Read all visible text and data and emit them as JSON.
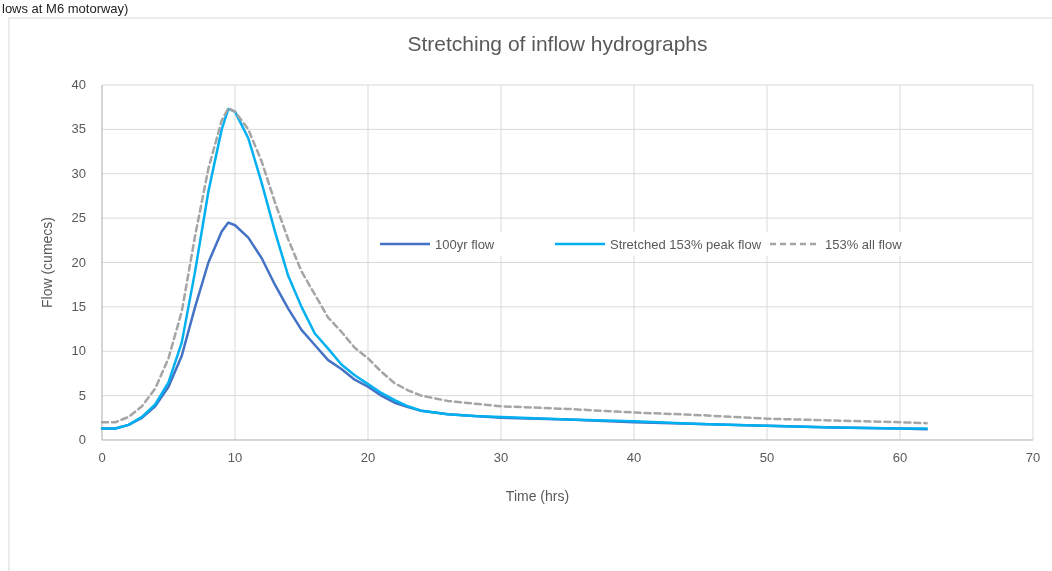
{
  "chart_data": {
    "type": "line",
    "title": "Stretching of inflow hydrographs",
    "xlabel": "Time (hrs)",
    "ylabel": "Flow (cumecs)",
    "annotations": [
      "lows at M6 motorway)"
    ],
    "x": [
      0,
      1,
      2,
      3,
      4,
      5,
      6,
      7,
      8,
      9,
      9.5,
      10,
      11,
      12,
      13,
      14,
      15,
      16,
      17,
      18,
      19,
      20,
      21,
      22,
      23,
      24,
      26,
      28,
      30,
      35,
      40,
      45,
      50,
      55,
      60,
      62
    ],
    "series": [
      {
        "name": "100yr flow",
        "color": "#4472c4",
        "line_style": "solid",
        "values": [
          1.3,
          1.3,
          1.7,
          2.5,
          3.8,
          6,
          9.5,
          15,
          20,
          23.5,
          24.5,
          24.2,
          22.8,
          20.5,
          17.5,
          14.8,
          12.4,
          10.7,
          9,
          8,
          6.8,
          6,
          5,
          4.2,
          3.7,
          3.3,
          2.9,
          2.7,
          2.5,
          2.3,
          2,
          1.8,
          1.6,
          1.4,
          1.3,
          1.2
        ]
      },
      {
        "name": "Stretched 153% peak flow",
        "color": "#00b0f0",
        "line_style": "solid",
        "values": [
          1.3,
          1.3,
          1.7,
          2.6,
          4,
          6.5,
          11,
          19,
          28,
          35,
          37.3,
          37,
          34,
          29,
          23.5,
          18.5,
          15,
          12,
          10.3,
          8.5,
          7.3,
          6.3,
          5.3,
          4.5,
          3.8,
          3.3,
          2.9,
          2.7,
          2.6,
          2.3,
          2.1,
          1.8,
          1.6,
          1.4,
          1.3,
          1.3
        ]
      },
      {
        "name": "153% all flow",
        "color": "#a5a5a5",
        "line_style": "dashed",
        "values": [
          2,
          2,
          2.6,
          3.8,
          5.8,
          9.2,
          14.5,
          23,
          30.6,
          36,
          37.4,
          37,
          35,
          31.4,
          26.8,
          22.6,
          19,
          16.4,
          13.8,
          12.2,
          10.4,
          9.2,
          7.7,
          6.4,
          5.6,
          5,
          4.4,
          4.1,
          3.8,
          3.5,
          3.1,
          2.8,
          2.4,
          2.2,
          2,
          1.9
        ]
      }
    ],
    "xlim": [
      0,
      70
    ],
    "xticks": [
      0,
      10,
      20,
      30,
      40,
      50,
      60,
      70
    ],
    "ylim": [
      0,
      40
    ],
    "yticks": [
      0,
      5,
      10,
      15,
      20,
      25,
      30,
      35,
      40
    ],
    "grid": true,
    "legend": "right",
    "marker": "none"
  }
}
